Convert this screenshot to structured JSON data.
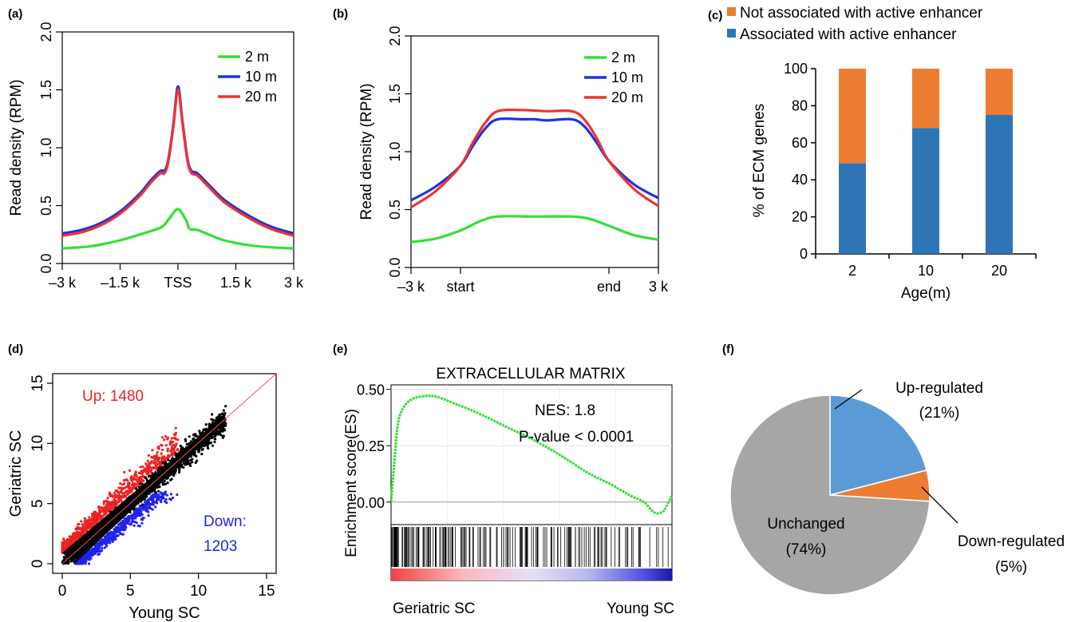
{
  "panels": {
    "a": {
      "letter": "(a)",
      "chart_data": {
        "type": "line",
        "ylabel": "Read density (RPM)",
        "ylim": [
          0,
          2.0
        ],
        "yticks": [
          "0.0",
          "0.5",
          "1.0",
          "1.5",
          "2.0"
        ],
        "xtick_labels": [
          "–3 k",
          "–1.5 k",
          "TSS",
          "1.5 k",
          "3 k"
        ],
        "xlim": [
          -3000,
          3000
        ],
        "xticks": [
          -3000,
          -1500,
          0,
          1500,
          3000
        ],
        "series": [
          {
            "name": "2 m",
            "color": "#33e033",
            "points": [
              [
                -3000,
                0.13
              ],
              [
                -2250,
                0.15
              ],
              [
                -1500,
                0.2
              ],
              [
                -1000,
                0.25
              ],
              [
                -700,
                0.28
              ],
              [
                -400,
                0.32
              ],
              [
                -200,
                0.4
              ],
              [
                0,
                0.47
              ],
              [
                200,
                0.38
              ],
              [
                300,
                0.3
              ],
              [
                500,
                0.29
              ],
              [
                800,
                0.25
              ],
              [
                1200,
                0.2
              ],
              [
                1800,
                0.16
              ],
              [
                2400,
                0.14
              ],
              [
                3000,
                0.13
              ]
            ]
          },
          {
            "name": "10 m",
            "color": "#2233dd",
            "points": [
              [
                -3000,
                0.26
              ],
              [
                -2500,
                0.29
              ],
              [
                -2000,
                0.35
              ],
              [
                -1500,
                0.45
              ],
              [
                -1000,
                0.6
              ],
              [
                -700,
                0.72
              ],
              [
                -450,
                0.8
              ],
              [
                -350,
                0.8
              ],
              [
                -250,
                0.9
              ],
              [
                -120,
                1.2
              ],
              [
                0,
                1.53
              ],
              [
                120,
                1.22
              ],
              [
                250,
                0.9
              ],
              [
                350,
                0.8
              ],
              [
                500,
                0.78
              ],
              [
                800,
                0.68
              ],
              [
                1200,
                0.55
              ],
              [
                1800,
                0.42
              ],
              [
                2400,
                0.32
              ],
              [
                3000,
                0.26
              ]
            ]
          },
          {
            "name": "20 m",
            "color": "#ee3333",
            "points": [
              [
                -3000,
                0.24
              ],
              [
                -2500,
                0.27
              ],
              [
                -2000,
                0.33
              ],
              [
                -1500,
                0.43
              ],
              [
                -1000,
                0.58
              ],
              [
                -700,
                0.7
              ],
              [
                -450,
                0.78
              ],
              [
                -350,
                0.78
              ],
              [
                -250,
                0.88
              ],
              [
                -120,
                1.18
              ],
              [
                0,
                1.5
              ],
              [
                120,
                1.2
              ],
              [
                250,
                0.88
              ],
              [
                350,
                0.78
              ],
              [
                500,
                0.76
              ],
              [
                800,
                0.66
              ],
              [
                1200,
                0.53
              ],
              [
                1800,
                0.4
              ],
              [
                2400,
                0.3
              ],
              [
                3000,
                0.24
              ]
            ]
          }
        ]
      }
    },
    "b": {
      "letter": "(b)",
      "chart_data": {
        "type": "line",
        "ylabel": "Read density (RPM)",
        "ylim": [
          0,
          2.0
        ],
        "yticks": [
          "0.0",
          "0.5",
          "1.0",
          "1.5",
          "2.0"
        ],
        "xtick_labels": [
          "–3 k",
          "start",
          "end",
          "3 k"
        ],
        "xlim": [
          0,
          100
        ],
        "xticks": [
          0,
          20,
          80,
          100
        ],
        "series": [
          {
            "name": "2 m",
            "color": "#33e033",
            "points": [
              [
                0,
                0.22
              ],
              [
                10,
                0.25
              ],
              [
                20,
                0.32
              ],
              [
                28,
                0.4
              ],
              [
                35,
                0.44
              ],
              [
                50,
                0.44
              ],
              [
                65,
                0.44
              ],
              [
                72,
                0.42
              ],
              [
                80,
                0.36
              ],
              [
                90,
                0.28
              ],
              [
                100,
                0.24
              ]
            ]
          },
          {
            "name": "10 m",
            "color": "#2233dd",
            "points": [
              [
                0,
                0.58
              ],
              [
                10,
                0.7
              ],
              [
                20,
                0.88
              ],
              [
                25,
                1.05
              ],
              [
                30,
                1.2
              ],
              [
                35,
                1.28
              ],
              [
                45,
                1.28
              ],
              [
                50,
                1.28
              ],
              [
                55,
                1.27
              ],
              [
                65,
                1.28
              ],
              [
                70,
                1.22
              ],
              [
                75,
                1.08
              ],
              [
                80,
                0.92
              ],
              [
                90,
                0.72
              ],
              [
                100,
                0.6
              ]
            ]
          },
          {
            "name": "20 m",
            "color": "#ee3333",
            "points": [
              [
                0,
                0.52
              ],
              [
                10,
                0.66
              ],
              [
                20,
                0.88
              ],
              [
                25,
                1.08
              ],
              [
                30,
                1.25
              ],
              [
                35,
                1.35
              ],
              [
                45,
                1.36
              ],
              [
                55,
                1.35
              ],
              [
                65,
                1.35
              ],
              [
                70,
                1.28
              ],
              [
                75,
                1.12
              ],
              [
                80,
                0.92
              ],
              [
                90,
                0.68
              ],
              [
                100,
                0.53
              ]
            ]
          }
        ]
      }
    },
    "c": {
      "letter": "(c)",
      "chart_data": {
        "type": "bar",
        "stacked": true,
        "categories": [
          "2",
          "10",
          "20"
        ],
        "ylabel": "% of ECM genes",
        "xlabel": "Age(m)",
        "ylim": [
          0,
          100
        ],
        "yticks": [
          "0",
          "20",
          "40",
          "60",
          "80",
          "100"
        ],
        "series": [
          {
            "name": "Associated with active enhancer",
            "color": "#2e75b6",
            "values": [
              49,
              68,
              75
            ]
          },
          {
            "name": "Not associated with active enhancer",
            "color": "#ed7d31",
            "values": [
              51,
              32,
              25
            ]
          }
        ]
      }
    },
    "d": {
      "letter": "(d)",
      "chart_data": {
        "type": "scatter",
        "xlabel": "Young SC",
        "ylabel": "Geriatric SC",
        "xlim": [
          0,
          15
        ],
        "ylim": [
          0,
          15
        ],
        "xticks": [
          "0",
          "5",
          "10",
          "15"
        ],
        "yticks": [
          "0",
          "5",
          "10",
          "15"
        ],
        "annotations": {
          "up": "Up: 1480",
          "down_1": "Down:",
          "down_2": "1203"
        },
        "colors": {
          "up": "#ee2222",
          "down": "#2222ee",
          "unchanged": "#000000",
          "diagonal": "#ee5555"
        }
      }
    },
    "e": {
      "letter": "(e)",
      "chart_data": {
        "type": "line",
        "title": "EXTRACELLULAR MATRIX",
        "ylabel": "Enrichment score(ES)",
        "ylim": [
          -0.1,
          0.52
        ],
        "yticks": [
          "0.00",
          "0.25",
          "0.50"
        ],
        "annotations": {
          "nes": "NES: 1.8",
          "pval": "P-value < 0.0001"
        },
        "xlabels": {
          "left": "Geriatric SC",
          "right": "Young SC"
        },
        "es_curve": [
          [
            0,
            0.0
          ],
          [
            1,
            0.15
          ],
          [
            2,
            0.3
          ],
          [
            3,
            0.38
          ],
          [
            5,
            0.43
          ],
          [
            8,
            0.46
          ],
          [
            12,
            0.47
          ],
          [
            15,
            0.47
          ],
          [
            18,
            0.46
          ],
          [
            22,
            0.44
          ],
          [
            30,
            0.4
          ],
          [
            40,
            0.34
          ],
          [
            50,
            0.28
          ],
          [
            60,
            0.21
          ],
          [
            70,
            0.13
          ],
          [
            78,
            0.08
          ],
          [
            85,
            0.03
          ],
          [
            90,
            0.0
          ],
          [
            93,
            -0.04
          ],
          [
            95,
            -0.05
          ],
          [
            97,
            -0.04
          ],
          [
            98,
            -0.02
          ],
          [
            100,
            0.03
          ]
        ],
        "color": "#33e033"
      }
    },
    "f": {
      "letter": "(f)",
      "chart_data": {
        "type": "pie",
        "slices": [
          {
            "label_1": "Up-regulated",
            "label_2": "(21%)",
            "value": 21,
            "color": "#5b9bd5"
          },
          {
            "label_1": "Down-regulated",
            "label_2": "(5%)",
            "value": 5,
            "color": "#ed7d31"
          },
          {
            "label_1": "Unchanged",
            "label_2": "(74%)",
            "value": 74,
            "color": "#a6a6a6"
          }
        ]
      }
    }
  }
}
